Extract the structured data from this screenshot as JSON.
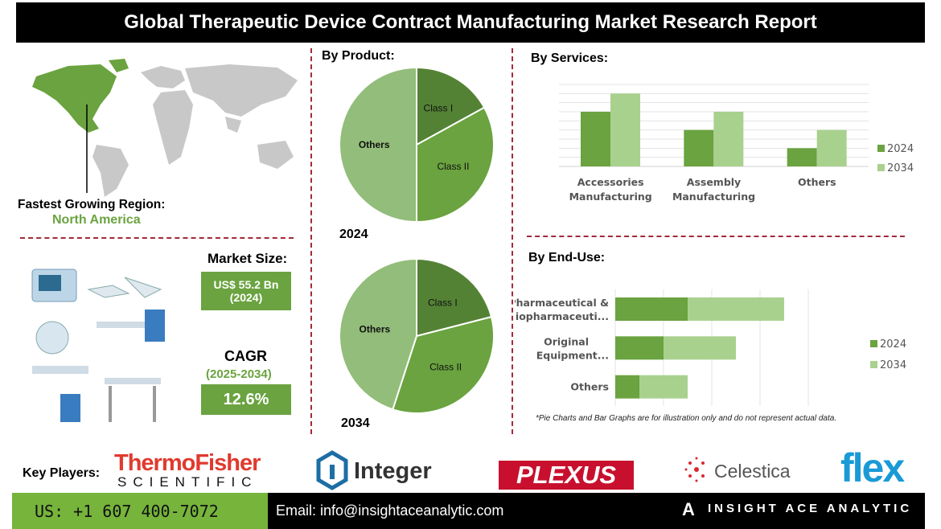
{
  "title": "Global Therapeutic Device Contract Manufacturing Market Research Report",
  "region": {
    "label": "Fastest Growing Region:",
    "value": "North America"
  },
  "market_size": {
    "label": "Market Size:",
    "value": "US$ 55.2 Bn",
    "year": "(2024)"
  },
  "cagr": {
    "label": "CAGR",
    "period": "(2025-2034)",
    "value": "12.6%"
  },
  "colors": {
    "dark_green": "#548235",
    "mid_green": "#6aa33f",
    "light_green": "#a9d18e",
    "accent_red": "#a3293a"
  },
  "chart_data": [
    {
      "type": "pie",
      "title": "By Product:",
      "label": "2024",
      "categories": [
        "Class I",
        "Class II",
        "Others"
      ],
      "values": [
        17,
        33,
        50
      ]
    },
    {
      "type": "pie",
      "label": "2034",
      "categories": [
        "Class I",
        "Class II",
        "Others"
      ],
      "values": [
        21,
        34,
        45
      ]
    },
    {
      "type": "bar",
      "title": "By Services:",
      "categories": [
        "Accessories Manufacturing",
        "Assembly Manufacturing",
        "Others"
      ],
      "series": [
        {
          "name": "2024",
          "values": [
            6,
            4,
            2
          ]
        },
        {
          "name": "2034",
          "values": [
            8,
            6,
            4
          ]
        }
      ],
      "ylim": [
        0,
        9
      ],
      "grid": true,
      "legend": "right"
    },
    {
      "type": "bar",
      "orientation": "horizontal",
      "stacked": true,
      "title": "By End-Use:",
      "categories": [
        "Pharmaceutical & Biopharmaceuti...",
        "Original Equipment...",
        "Others"
      ],
      "series": [
        {
          "name": "2024",
          "values": [
            1.5,
            1,
            0.5
          ]
        },
        {
          "name": "2034",
          "values": [
            2,
            1.5,
            1
          ]
        }
      ],
      "xlim": [
        0,
        4
      ],
      "grid": true,
      "legend": "right"
    }
  ],
  "note": "*Pie Charts and Bar Graphs are for illustration only and do not represent actual data.",
  "key_players": {
    "label": "Key Players:",
    "logos": [
      "ThermoFisher",
      "SCIENTIFIC",
      "Integer",
      "PLEXUS",
      "Celestica",
      "flex"
    ]
  },
  "footer": {
    "phone": "US: +1 607 400-7072",
    "email": "Email: info@insightaceanalytic.com",
    "brand": "INSIGHT ACE ANALYTIC"
  }
}
